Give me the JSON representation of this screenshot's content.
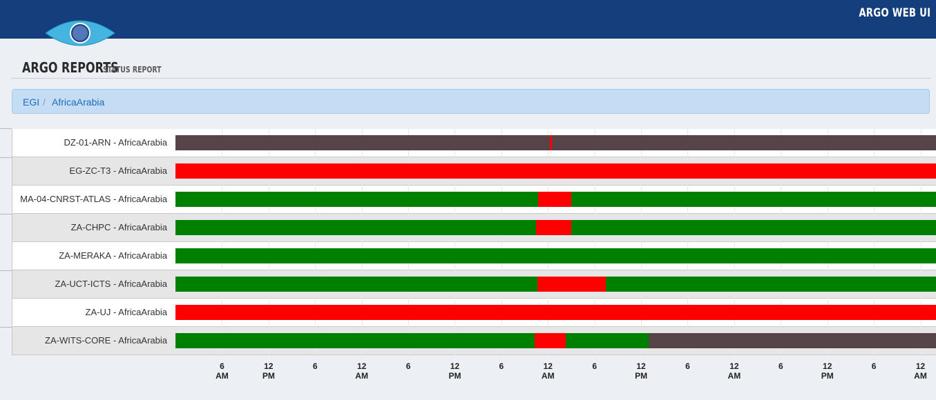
{
  "header": {
    "app_name": "ARGO WEB UI",
    "page_title": "ARGO REPORTS",
    "page_subtitle": "STATUS REPORT"
  },
  "breadcrumb": [
    "EGI",
    "AfricaArabia"
  ],
  "colors": {
    "ok": "#008000",
    "critical": "#ff0000",
    "missing": "#564449",
    "header_bg": "#143e7c",
    "breadcrumb_bg": "#c5ddf4"
  },
  "timeline": {
    "start": "2015-01-01T00:00",
    "end": "2015-01-05T02:00",
    "ticks": [
      {
        "time": "2015-01-01T06:00",
        "line1": "6",
        "line2": "AM"
      },
      {
        "time": "2015-01-01T12:00",
        "line1": "12",
        "line2": "PM"
      },
      {
        "time": "2015-01-01T18:00",
        "line1": "6",
        "line2": ""
      },
      {
        "time": "2015-01-02T00:00",
        "line1": "12",
        "line2": "AM"
      },
      {
        "time": "2015-01-02T06:00",
        "line1": "6",
        "line2": ""
      },
      {
        "time": "2015-01-02T12:00",
        "line1": "12",
        "line2": "PM"
      },
      {
        "time": "2015-01-02T18:00",
        "line1": "6",
        "line2": ""
      },
      {
        "time": "2015-01-03T00:00",
        "line1": "12",
        "line2": "AM"
      },
      {
        "time": "2015-01-03T06:00",
        "line1": "6",
        "line2": ""
      },
      {
        "time": "2015-01-03T12:00",
        "line1": "12",
        "line2": "PM"
      },
      {
        "time": "2015-01-03T18:00",
        "line1": "6",
        "line2": ""
      },
      {
        "time": "2015-01-04T00:00",
        "line1": "12",
        "line2": "AM"
      },
      {
        "time": "2015-01-04T06:00",
        "line1": "6",
        "line2": ""
      },
      {
        "time": "2015-01-04T12:00",
        "line1": "12",
        "line2": "PM"
      },
      {
        "time": "2015-01-04T18:00",
        "line1": "6",
        "line2": ""
      },
      {
        "time": "2015-01-05T00:00",
        "line1": "12",
        "line2": "AM"
      }
    ]
  },
  "sites": [
    {
      "label": "DZ-01-ARN - AfricaArabia",
      "segments": [
        {
          "status": "missing",
          "start": "2015-01-01T00:00",
          "end": "2015-01-03T00:15"
        },
        {
          "status": "critical",
          "start": "2015-01-03T00:15",
          "end": "2015-01-03T00:30"
        },
        {
          "status": "missing",
          "start": "2015-01-03T00:30",
          "end": "2015-01-05T02:00"
        }
      ]
    },
    {
      "label": "EG-ZC-T3 - AfricaArabia",
      "segments": [
        {
          "status": "critical",
          "start": "2015-01-01T00:00",
          "end": "2015-01-05T02:00"
        }
      ]
    },
    {
      "label": "MA-04-CNRST-ATLAS - AfricaArabia",
      "segments": [
        {
          "status": "ok",
          "start": "2015-01-01T00:00",
          "end": "2015-01-02T22:45"
        },
        {
          "status": "critical",
          "start": "2015-01-02T22:45",
          "end": "2015-01-03T03:00"
        },
        {
          "status": "ok",
          "start": "2015-01-03T03:00",
          "end": "2015-01-05T02:00"
        }
      ]
    },
    {
      "label": "ZA-CHPC - AfricaArabia",
      "segments": [
        {
          "status": "ok",
          "start": "2015-01-01T00:00",
          "end": "2015-01-02T22:30"
        },
        {
          "status": "critical",
          "start": "2015-01-02T22:30",
          "end": "2015-01-03T03:00"
        },
        {
          "status": "ok",
          "start": "2015-01-03T03:00",
          "end": "2015-01-05T02:00"
        }
      ]
    },
    {
      "label": "ZA-MERAKA - AfricaArabia",
      "segments": [
        {
          "status": "ok",
          "start": "2015-01-01T00:00",
          "end": "2015-01-05T02:00"
        }
      ]
    },
    {
      "label": "ZA-UCT-ICTS - AfricaArabia",
      "segments": [
        {
          "status": "ok",
          "start": "2015-01-01T00:00",
          "end": "2015-01-02T22:40"
        },
        {
          "status": "critical",
          "start": "2015-01-02T22:40",
          "end": "2015-01-03T07:25"
        },
        {
          "status": "ok",
          "start": "2015-01-03T07:25",
          "end": "2015-01-05T02:00"
        }
      ]
    },
    {
      "label": "ZA-UJ - AfricaArabia",
      "segments": [
        {
          "status": "critical",
          "start": "2015-01-01T00:00",
          "end": "2015-01-05T02:00"
        }
      ]
    },
    {
      "label": "ZA-WITS-CORE - AfricaArabia",
      "segments": [
        {
          "status": "ok",
          "start": "2015-01-01T00:00",
          "end": "2015-01-02T22:15"
        },
        {
          "status": "critical",
          "start": "2015-01-02T22:15",
          "end": "2015-01-03T02:15"
        },
        {
          "status": "ok",
          "start": "2015-01-03T02:15",
          "end": "2015-01-03T13:00"
        },
        {
          "status": "missing",
          "start": "2015-01-03T13:00",
          "end": "2015-01-05T02:00"
        }
      ]
    }
  ]
}
